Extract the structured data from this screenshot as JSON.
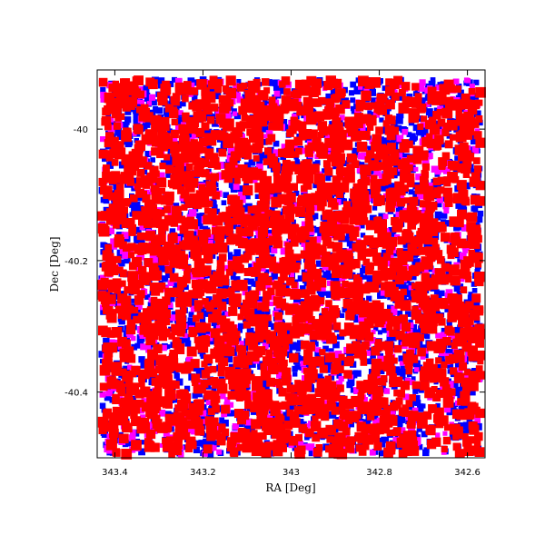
{
  "chart_data": {
    "type": "scatter",
    "title": "",
    "xlabel": "RA [Deg]",
    "ylabel": "Dec [Deg]",
    "x_reversed": true,
    "xlim": [
      343.44,
      342.56
    ],
    "ylim": [
      -40.5,
      -39.91
    ],
    "xticks": [
      {
        "value": 343.4,
        "label": "343.4"
      },
      {
        "value": 343.2,
        "label": "343.2"
      },
      {
        "value": 343.0,
        "label": "343"
      },
      {
        "value": 342.8,
        "label": "342.8"
      },
      {
        "value": 342.6,
        "label": "342.6"
      }
    ],
    "yticks": [
      {
        "value": -40.0,
        "label": "-40"
      },
      {
        "value": -40.2,
        "label": "-40.2"
      },
      {
        "value": -40.4,
        "label": "-40.4"
      }
    ],
    "grid": false,
    "legend": "none",
    "series": [
      {
        "color": "#0000ff",
        "marker": "square",
        "role": "background layer",
        "approx_count": 2600
      },
      {
        "color": "#ff00ff",
        "marker": "square",
        "role": "middle layer",
        "approx_count": 900
      },
      {
        "color": "#ff0000",
        "marker": "square",
        "role": "top layer",
        "approx_count": 2600
      }
    ],
    "footprint": {
      "ra_range": [
        343.43,
        342.57
      ],
      "dec_range": [
        -40.495,
        -39.925
      ]
    }
  }
}
